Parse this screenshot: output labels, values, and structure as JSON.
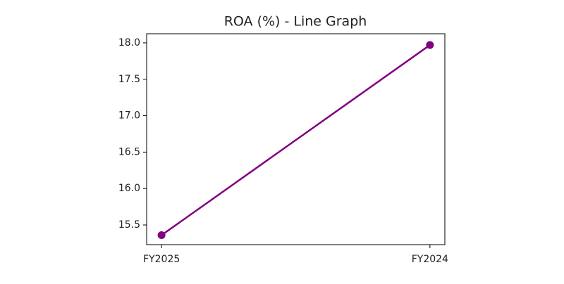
{
  "chart_data": {
    "type": "line",
    "title": "ROA (%) - Line Graph",
    "categories": [
      "FY2025",
      "FY2024"
    ],
    "series": [
      {
        "name": "ROA (%)",
        "color": "#800080",
        "values": [
          15.36,
          17.97
        ]
      }
    ],
    "ylim": [
      15.23,
      18.125
    ],
    "yticks": [
      15.5,
      {
        "value": 16,
        "label": "16.0"
      },
      16.5,
      {
        "value": 17,
        "label": "17.0"
      },
      17.5,
      {
        "value": 18,
        "label": "18.0"
      }
    ]
  }
}
